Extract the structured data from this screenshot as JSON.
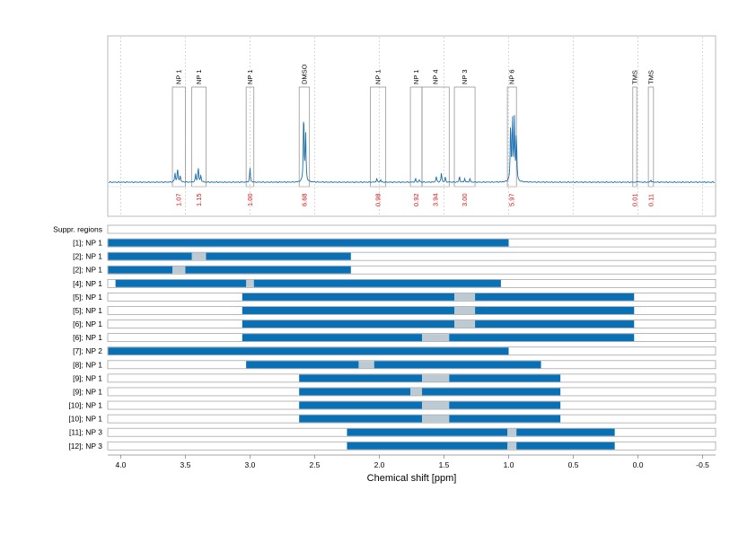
{
  "chart_data": {
    "type": "line",
    "xlabel": "Chemical shift [ppm]",
    "x_ticks": [
      "4.0",
      "3.5",
      "3.0",
      "2.5",
      "2.0",
      "1.5",
      "1.0",
      "0.5",
      "0.0",
      "-0.5"
    ],
    "x_tick_values": [
      4.0,
      3.5,
      3.0,
      2.5,
      2.0,
      1.5,
      1.0,
      0.5,
      0.0,
      -0.5
    ],
    "xlim": [
      4.1,
      -0.6
    ],
    "x_reversed": true,
    "grid": true,
    "colors": {
      "spectrum": "#1a6fad",
      "bar": "#0a70b5",
      "gap": "#bccbd3",
      "integral": "#dd1111",
      "box": "#888888"
    },
    "regions": [
      {
        "label": "NP 1",
        "x1": 3.6,
        "x2": 3.5,
        "integral": "1.07"
      },
      {
        "label": "NP 1",
        "x1": 3.45,
        "x2": 3.34,
        "integral": "1.15"
      },
      {
        "label": "NP 1",
        "x1": 3.03,
        "x2": 2.97,
        "integral": "1.00"
      },
      {
        "label": "DMSO",
        "x1": 2.62,
        "x2": 2.54,
        "integral": "6.68"
      },
      {
        "label": "NP 1",
        "x1": 2.07,
        "x2": 1.95,
        "integral": "0.98"
      },
      {
        "label": "NP 1",
        "x1": 1.76,
        "x2": 1.67,
        "integral": "0.92"
      },
      {
        "label": "NP 4",
        "x1": 1.67,
        "x2": 1.46,
        "integral": "3.94"
      },
      {
        "label": "NP 3",
        "x1": 1.42,
        "x2": 1.26,
        "integral": "3.00"
      },
      {
        "label": "NP 6",
        "x1": 1.01,
        "x2": 0.94,
        "integral": "5.97"
      },
      {
        "label": "TMS",
        "x1": 0.04,
        "x2": 0.01,
        "integral": "0.01"
      },
      {
        "label": "TMS",
        "x1": -0.08,
        "x2": -0.12,
        "integral": "0.11"
      }
    ],
    "peaks": [
      {
        "x": 3.58,
        "h": 0.08
      },
      {
        "x": 3.56,
        "h": 0.12
      },
      {
        "x": 3.54,
        "h": 0.06
      },
      {
        "x": 3.42,
        "h": 0.07
      },
      {
        "x": 3.4,
        "h": 0.13
      },
      {
        "x": 3.38,
        "h": 0.06
      },
      {
        "x": 3.0,
        "h": 0.12
      },
      {
        "x": 2.585,
        "h": 0.6
      },
      {
        "x": 2.57,
        "h": 0.42
      },
      {
        "x": 2.02,
        "h": 0.03
      },
      {
        "x": 1.99,
        "h": 0.02
      },
      {
        "x": 1.72,
        "h": 0.03
      },
      {
        "x": 1.69,
        "h": 0.02
      },
      {
        "x": 1.56,
        "h": 0.05
      },
      {
        "x": 1.52,
        "h": 0.08
      },
      {
        "x": 1.49,
        "h": 0.04
      },
      {
        "x": 1.38,
        "h": 0.05
      },
      {
        "x": 1.34,
        "h": 0.03
      },
      {
        "x": 1.3,
        "h": 0.03
      },
      {
        "x": 0.985,
        "h": 0.5
      },
      {
        "x": 0.97,
        "h": 0.55
      },
      {
        "x": 0.955,
        "h": 0.52
      },
      {
        "x": 0.94,
        "h": 0.4
      },
      {
        "x": 0.0,
        "h": 0.01
      },
      {
        "x": -0.1,
        "h": 0.02
      }
    ],
    "rows": [
      {
        "label": "Suppr. regions",
        "segments": []
      },
      {
        "label": "[1]; NP 1",
        "segments": [
          [
            4.1,
            1.0
          ]
        ]
      },
      {
        "label": "[2]; NP 1",
        "segments": [
          [
            4.1,
            3.45
          ],
          [
            3.34,
            2.22
          ]
        ]
      },
      {
        "label": "[2]; NP 1",
        "segments": [
          [
            4.1,
            3.6
          ],
          [
            3.5,
            2.22
          ]
        ]
      },
      {
        "label": "[4]; NP 1",
        "segments": [
          [
            4.04,
            3.03
          ],
          [
            2.97,
            1.06
          ]
        ]
      },
      {
        "label": "[5]; NP 1",
        "segments": [
          [
            3.06,
            1.42
          ],
          [
            1.26,
            0.03
          ]
        ]
      },
      {
        "label": "[5]; NP 1",
        "segments": [
          [
            3.06,
            1.42
          ],
          [
            1.26,
            0.03
          ]
        ]
      },
      {
        "label": "[6]; NP 1",
        "segments": [
          [
            3.06,
            1.42
          ],
          [
            1.26,
            0.03
          ]
        ]
      },
      {
        "label": "[6]; NP 1",
        "segments": [
          [
            3.06,
            1.67
          ],
          [
            1.46,
            0.03
          ]
        ]
      },
      {
        "label": "[7]; NP 2",
        "segments": [
          [
            4.1,
            1.0
          ]
        ]
      },
      {
        "label": "[8]; NP 1",
        "segments": [
          [
            3.03,
            2.16
          ],
          [
            2.04,
            0.75
          ]
        ]
      },
      {
        "label": "[9]; NP 1",
        "segments": [
          [
            2.62,
            1.67
          ],
          [
            1.46,
            0.6
          ]
        ]
      },
      {
        "label": "[9]; NP 1",
        "segments": [
          [
            2.62,
            1.76
          ],
          [
            1.67,
            0.6
          ]
        ]
      },
      {
        "label": "[10]; NP 1",
        "segments": [
          [
            2.62,
            1.67
          ],
          [
            1.46,
            0.6
          ]
        ]
      },
      {
        "label": "[10]; NP 1",
        "segments": [
          [
            2.62,
            1.67
          ],
          [
            1.46,
            0.6
          ]
        ]
      },
      {
        "label": "[11]; NP 3",
        "segments": [
          [
            2.25,
            1.01
          ],
          [
            0.94,
            0.18
          ]
        ]
      },
      {
        "label": "[12]; NP 3",
        "segments": [
          [
            2.25,
            1.01
          ],
          [
            0.94,
            0.18
          ]
        ]
      }
    ]
  }
}
